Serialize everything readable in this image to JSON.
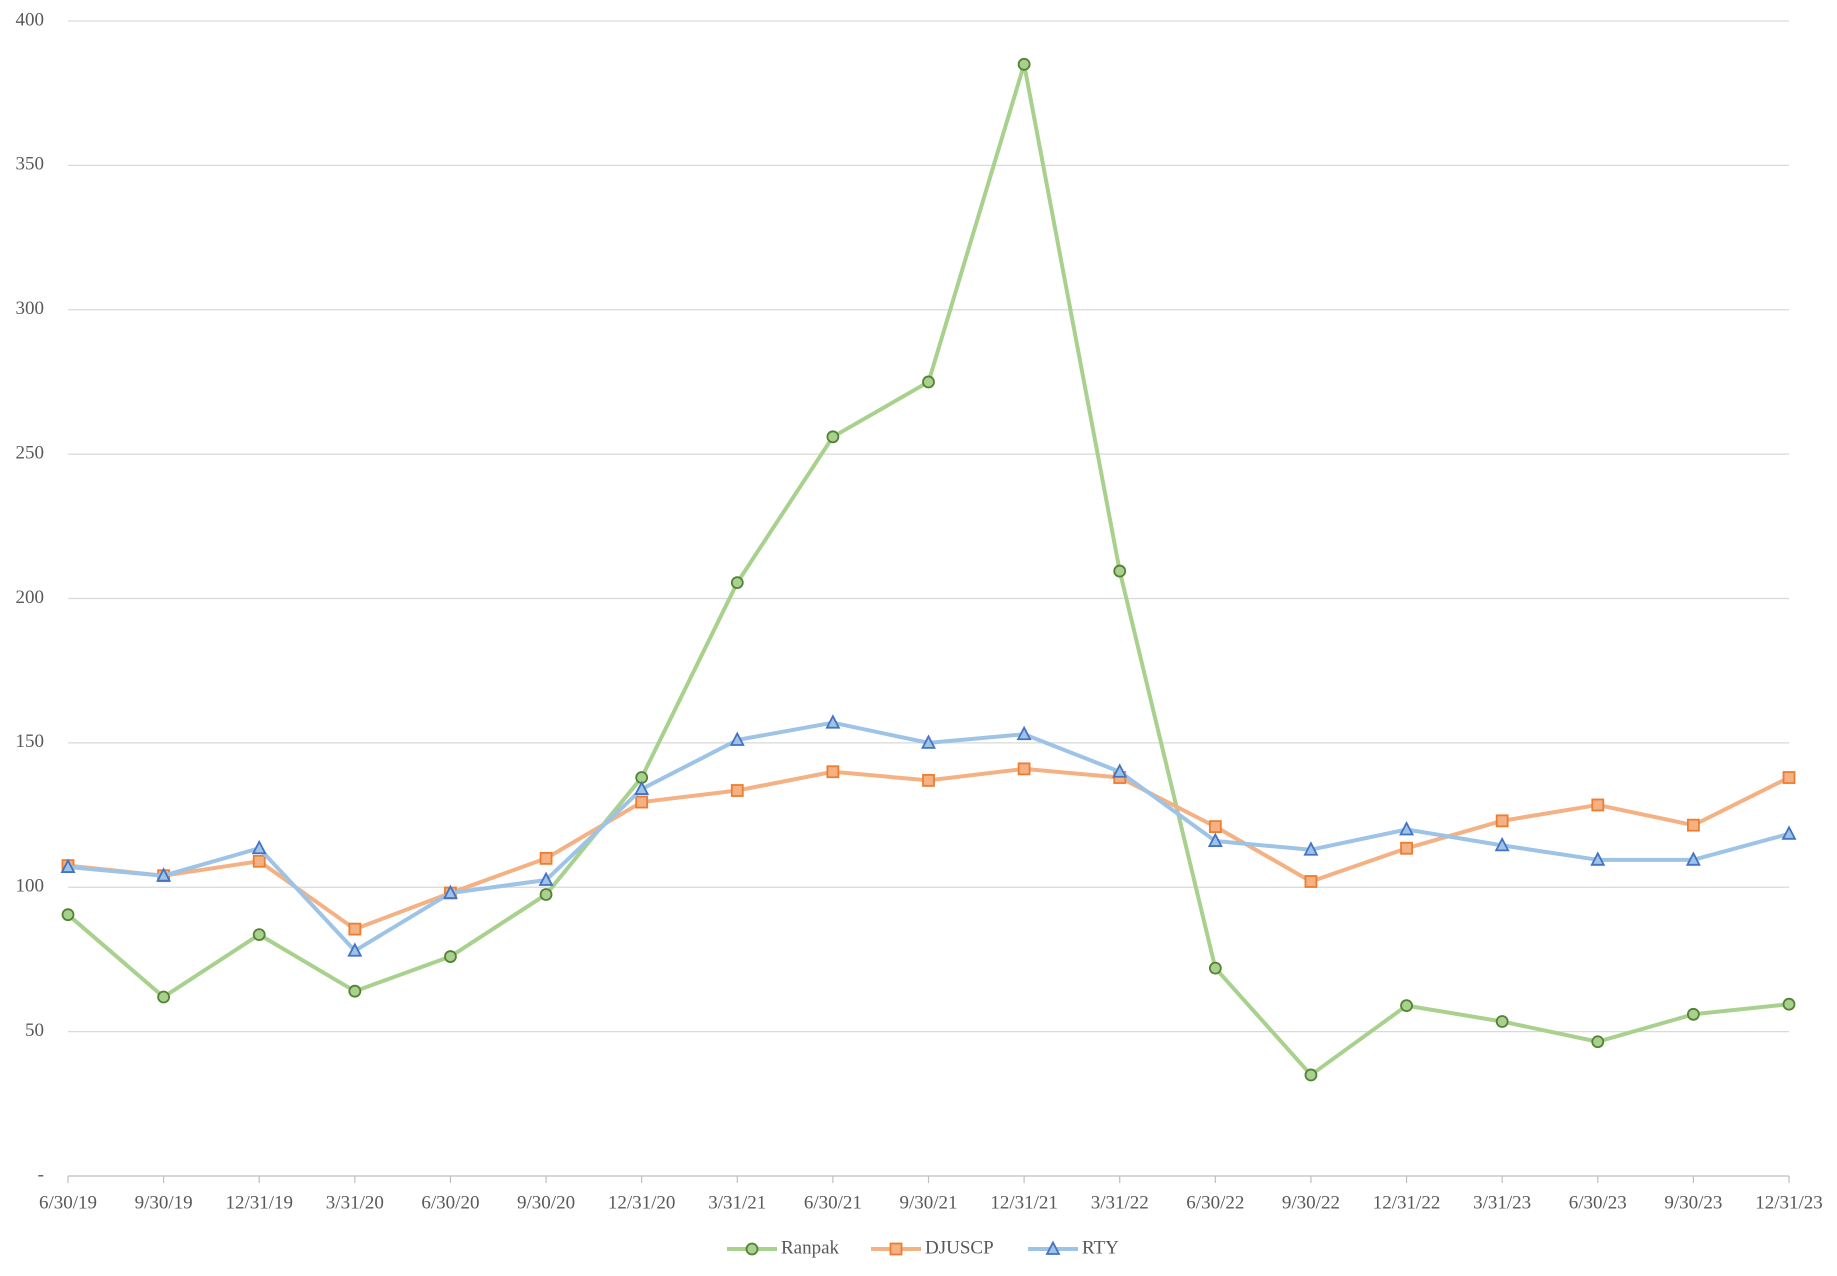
{
  "chart_data": {
    "type": "line",
    "categories": [
      "6/30/19",
      "9/30/19",
      "12/31/19",
      "3/31/20",
      "6/30/20",
      "9/30/20",
      "12/31/20",
      "3/31/21",
      "6/30/21",
      "9/30/21",
      "12/31/21",
      "3/31/22",
      "6/30/22",
      "9/30/22",
      "12/31/22",
      "3/31/23",
      "6/30/23",
      "9/30/23",
      "12/31/23"
    ],
    "series": [
      {
        "name": "Ranpak",
        "color": "#a9d18e",
        "marker": "circle",
        "marker_edge": "#548235",
        "values": [
          90.5,
          62,
          83.6,
          64,
          76,
          97.5,
          138,
          205.5,
          256,
          275,
          385,
          209.5,
          72,
          35,
          59,
          53.5,
          46.5,
          56,
          59.5
        ]
      },
      {
        "name": "DJUSCP",
        "color": "#f4b183",
        "marker": "square",
        "marker_edge": "#ed7d31",
        "values": [
          107.5,
          104,
          109,
          85.5,
          98,
          110,
          129.5,
          133.5,
          140,
          137,
          141,
          138,
          121,
          102,
          113.5,
          123,
          128.5,
          121.5,
          138
        ]
      },
      {
        "name": "RTY",
        "color": "#9dc3e6",
        "marker": "triangle",
        "marker_edge": "#4472c4",
        "values": [
          107,
          104,
          113.5,
          78,
          98,
          102.5,
          134,
          151,
          157,
          150,
          153,
          140,
          116,
          113,
          120,
          114.5,
          109.5,
          109.5,
          118.5
        ]
      }
    ],
    "ylim": [
      0,
      400
    ],
    "yticks": [
      {
        "value": 0,
        "label": "-"
      },
      50,
      100,
      150,
      200,
      250,
      300,
      350,
      400
    ],
    "grid": true,
    "legend": "bottom"
  }
}
